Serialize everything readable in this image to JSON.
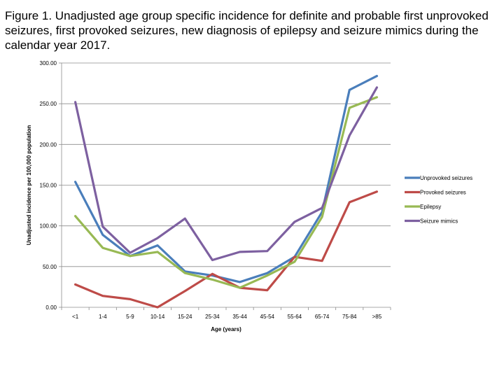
{
  "caption": "Figure 1. Unadjusted age group specific incidence for definite and probable first unprovoked seizures, first provoked seizures, new diagnosis of epilepsy and seizure mimics during the calendar year 2017.",
  "chart_data": {
    "type": "line",
    "title": "",
    "xlabel": "Age (years)",
    "ylabel": "Unadjusted incidence per 100,000 population",
    "categories": [
      "<1",
      "1-4",
      "5-9",
      "10-14",
      "15-24",
      "25-34",
      "35-44",
      "45-54",
      "55-64",
      "65-74",
      "75-84",
      ">85"
    ],
    "ylim": [
      0,
      300
    ],
    "yticks": [
      "0.00",
      "50.00",
      "100.00",
      "150.00",
      "200.00",
      "250.00",
      "300.00"
    ],
    "grid": true,
    "legend_position": "right",
    "series": [
      {
        "name": "Unprovoked seizures",
        "color": "#4a7ebb",
        "values": [
          154,
          89,
          63,
          76,
          44,
          39,
          31,
          42,
          62,
          117,
          267,
          284
        ]
      },
      {
        "name": "Provoked seizures",
        "color": "#be4b48",
        "values": [
          28,
          14,
          10,
          0,
          20,
          41,
          24,
          21,
          62,
          57,
          129,
          142
        ]
      },
      {
        "name": "Epilepsy",
        "color": "#98b954",
        "values": [
          112,
          73,
          63,
          68,
          42,
          34,
          24,
          39,
          56,
          111,
          245,
          258
        ]
      },
      {
        "name": "Seizure mimics",
        "color": "#7d60a0",
        "values": [
          252,
          99,
          67,
          85,
          109,
          58,
          68,
          69,
          105,
          122,
          211,
          270
        ]
      }
    ]
  }
}
